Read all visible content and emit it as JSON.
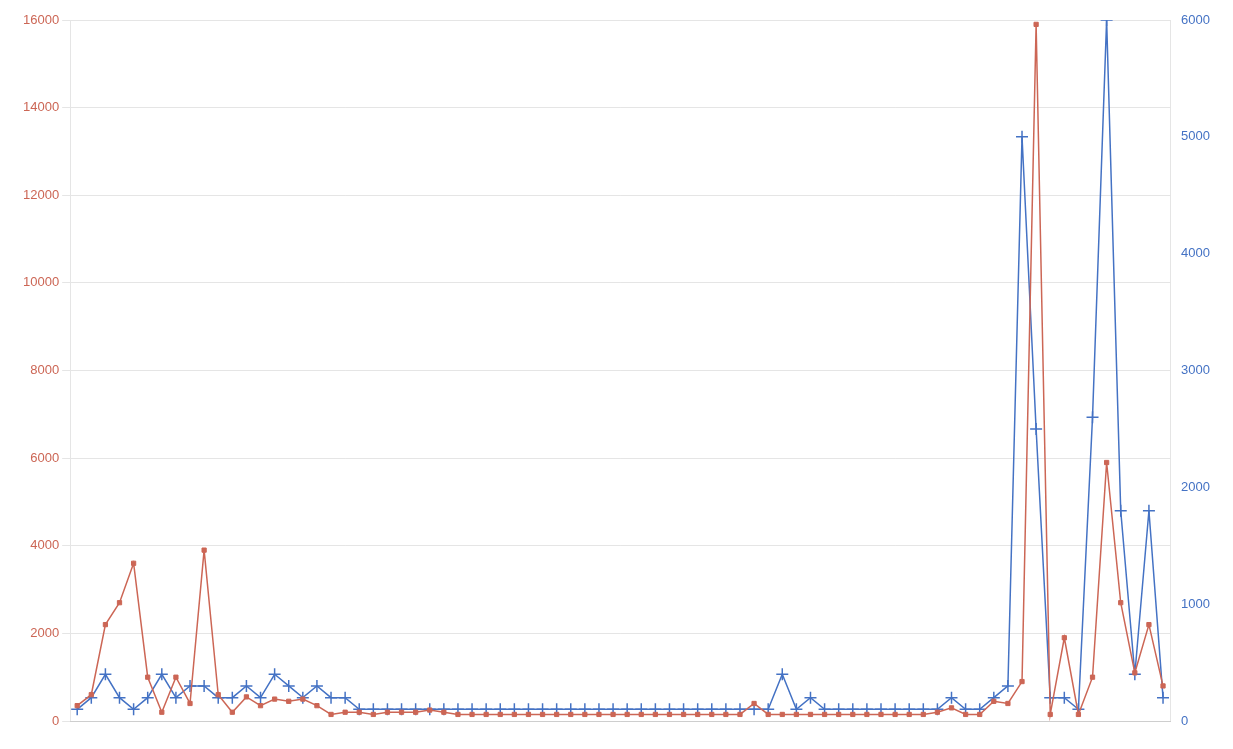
{
  "chart_data": {
    "type": "line",
    "categories": [
      null,
      null,
      null,
      null,
      null,
      null,
      null,
      null,
      null,
      null,
      null,
      null,
      null,
      null,
      null,
      null,
      null,
      null,
      null,
      null,
      null,
      null,
      null,
      null,
      null,
      null,
      null,
      null,
      null,
      null,
      null,
      null,
      null,
      null,
      null,
      null,
      null,
      null,
      null,
      null,
      null,
      null,
      null,
      null,
      null,
      null,
      null,
      null,
      null,
      null,
      null,
      null,
      null,
      null,
      null,
      null,
      null,
      null,
      null,
      null,
      null,
      null,
      null,
      null,
      null,
      null,
      null,
      null,
      null,
      null,
      null,
      null,
      null,
      null,
      null,
      null,
      null,
      null
    ],
    "series": [
      {
        "color": "#cc6655",
        "marker": "square",
        "values": [
          350,
          600,
          2200,
          2700,
          3600,
          1000,
          200,
          1000,
          400,
          3900,
          600,
          200,
          550,
          350,
          500,
          450,
          500,
          350,
          150,
          200,
          200,
          150,
          200,
          200,
          200,
          250,
          200,
          150,
          150,
          150,
          150,
          150,
          150,
          150,
          150,
          150,
          150,
          150,
          150,
          150,
          150,
          150,
          150,
          150,
          150,
          150,
          150,
          150,
          400,
          150,
          150,
          150,
          150,
          150,
          150,
          150,
          150,
          150,
          150,
          150,
          150,
          200,
          300,
          150,
          150,
          450,
          400,
          900,
          15900,
          150,
          1900,
          150,
          1000,
          5900,
          2700,
          1100,
          2200,
          800
        ]
      },
      {
        "color": "#4472c4",
        "marker": "plus",
        "axis": "y2",
        "values": [
          100,
          200,
          400,
          200,
          100,
          200,
          400,
          200,
          300,
          300,
          200,
          200,
          300,
          200,
          400,
          300,
          200,
          300,
          200,
          200,
          100,
          100,
          100,
          100,
          100,
          100,
          100,
          100,
          100,
          100,
          100,
          100,
          100,
          100,
          100,
          100,
          100,
          100,
          100,
          100,
          100,
          100,
          100,
          100,
          100,
          100,
          100,
          100,
          100,
          100,
          400,
          100,
          200,
          100,
          100,
          100,
          100,
          100,
          100,
          100,
          100,
          100,
          200,
          100,
          100,
          200,
          300,
          5000,
          2500,
          200,
          200,
          100,
          2600,
          6000,
          1800,
          400,
          1800,
          200
        ]
      }
    ],
    "ylim": [
      0,
      16000
    ],
    "yticks": [
      0,
      2000,
      4000,
      6000,
      8000,
      10000,
      12000,
      14000,
      16000
    ],
    "y2lim": [
      0,
      6000
    ],
    "y2ticks": [
      0,
      1000,
      2000,
      3000,
      4000,
      5000,
      6000
    ],
    "grid": true,
    "tick_labels": "y"
  }
}
